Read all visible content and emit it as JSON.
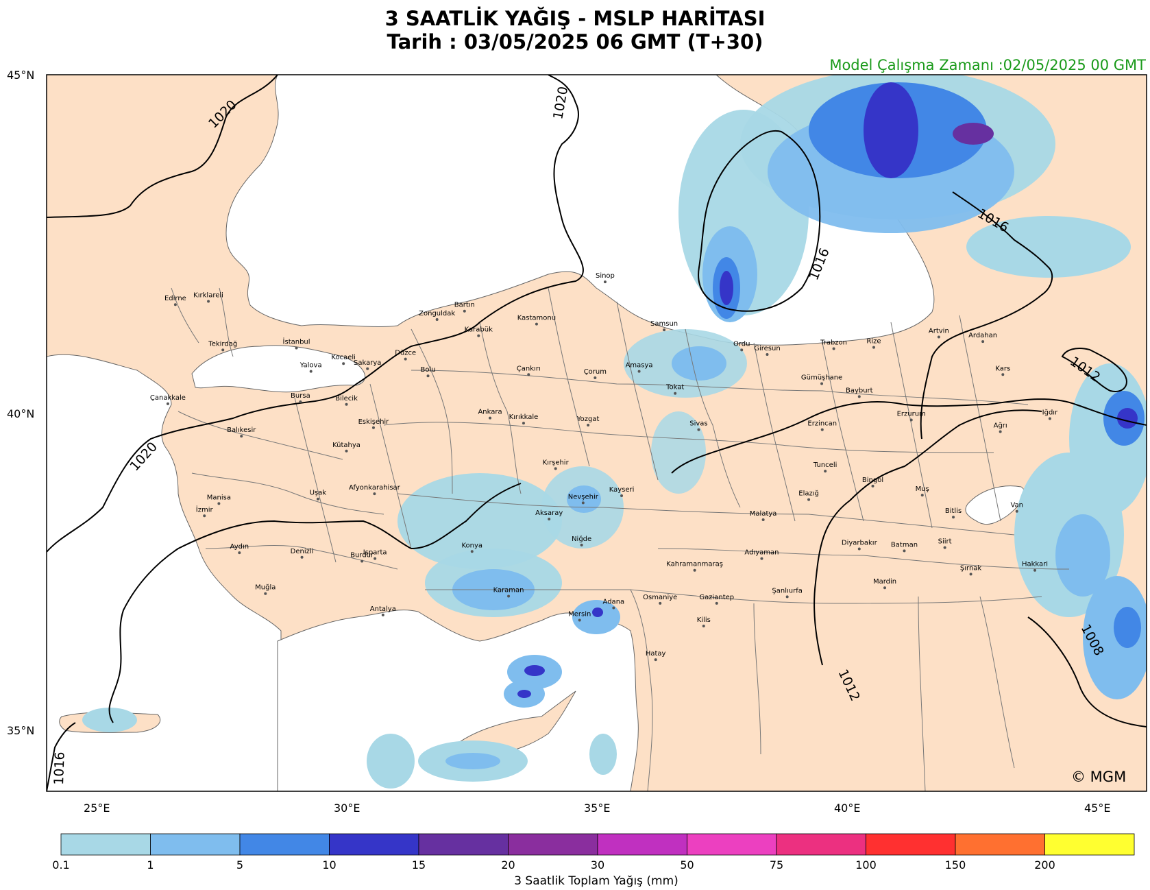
{
  "title_line1": "3 SAATLİK YAĞIŞ - MSLP HARİTASI",
  "title_line2": "Tarih : 03/05/2025  06 GMT (T+30)",
  "model_run": "Model Çalışma Zamanı :02/05/2025  00 GMT",
  "copyright": "© MGM",
  "lat_labels": [
    "45°N",
    "40°N",
    "35°N"
  ],
  "lon_labels": [
    "25°E",
    "30°E",
    "35°E",
    "40°E",
    "45°E"
  ],
  "isobars": [
    "1020",
    "1020",
    "1020",
    "1016",
    "1016",
    "1016",
    "1012",
    "1012",
    "1008"
  ],
  "colorbar": {
    "label": "3 Saatlik Toplam Yağış (mm)",
    "ticks": [
      "0.1",
      "1",
      "5",
      "10",
      "15",
      "20",
      "30",
      "50",
      "75",
      "100",
      "150",
      "200"
    ],
    "colors": [
      "#a8d8e6",
      "#7fbdee",
      "#4287e6",
      "#3535c8",
      "#6630a0",
      "#8a2e9e",
      "#c030c0",
      "#ec40c0",
      "#ec3080",
      "#ff3030",
      "#ff7030",
      "#ffff30"
    ]
  },
  "cities": [
    {
      "name": "Edirne",
      "lon": 26.56,
      "lat": 41.68
    },
    {
      "name": "Kırklareli",
      "lon": 27.22,
      "lat": 41.73
    },
    {
      "name": "Tekirdağ",
      "lon": 27.51,
      "lat": 40.98
    },
    {
      "name": "İstanbul",
      "lon": 28.98,
      "lat": 41.01
    },
    {
      "name": "Kocaeli",
      "lon": 29.92,
      "lat": 40.77
    },
    {
      "name": "Yalova",
      "lon": 29.27,
      "lat": 40.65
    },
    {
      "name": "Sakarya",
      "lon": 30.4,
      "lat": 40.69
    },
    {
      "name": "Düzce",
      "lon": 31.16,
      "lat": 40.84
    },
    {
      "name": "Zonguldak",
      "lon": 31.79,
      "lat": 41.45
    },
    {
      "name": "Bartın",
      "lon": 32.34,
      "lat": 41.58
    },
    {
      "name": "Karabük",
      "lon": 32.62,
      "lat": 41.2
    },
    {
      "name": "Kastamonu",
      "lon": 33.78,
      "lat": 41.38
    },
    {
      "name": "Sinop",
      "lon": 35.15,
      "lat": 42.03
    },
    {
      "name": "Samsun",
      "lon": 36.33,
      "lat": 41.29
    },
    {
      "name": "Ordu",
      "lon": 37.88,
      "lat": 40.98
    },
    {
      "name": "Giresun",
      "lon": 38.39,
      "lat": 40.91
    },
    {
      "name": "Trabzon",
      "lon": 39.72,
      "lat": 41.0
    },
    {
      "name": "Rize",
      "lon": 40.52,
      "lat": 41.02
    },
    {
      "name": "Artvin",
      "lon": 41.82,
      "lat": 41.18
    },
    {
      "name": "Ardahan",
      "lon": 42.7,
      "lat": 41.11
    },
    {
      "name": "Kars",
      "lon": 43.1,
      "lat": 40.6
    },
    {
      "name": "Iğdır",
      "lon": 44.04,
      "lat": 39.92
    },
    {
      "name": "Ağrı",
      "lon": 43.05,
      "lat": 39.72
    },
    {
      "name": "Erzurum",
      "lon": 41.27,
      "lat": 39.9
    },
    {
      "name": "Bayburt",
      "lon": 40.23,
      "lat": 40.26
    },
    {
      "name": "Gümüşhane",
      "lon": 39.48,
      "lat": 40.46
    },
    {
      "name": "Erzincan",
      "lon": 39.49,
      "lat": 39.75
    },
    {
      "name": "Tunceli",
      "lon": 39.55,
      "lat": 39.11
    },
    {
      "name": "Bingöl",
      "lon": 40.5,
      "lat": 38.88
    },
    {
      "name": "Muş",
      "lon": 41.49,
      "lat": 38.74
    },
    {
      "name": "Van",
      "lon": 43.38,
      "lat": 38.49
    },
    {
      "name": "Bitlis",
      "lon": 42.11,
      "lat": 38.4
    },
    {
      "name": "Elazığ",
      "lon": 39.22,
      "lat": 38.67
    },
    {
      "name": "Malatya",
      "lon": 38.31,
      "lat": 38.36
    },
    {
      "name": "Diyarbakır",
      "lon": 40.23,
      "lat": 37.91
    },
    {
      "name": "Batman",
      "lon": 41.13,
      "lat": 37.88
    },
    {
      "name": "Siirt",
      "lon": 41.94,
      "lat": 37.93
    },
    {
      "name": "Hakkari",
      "lon": 43.74,
      "lat": 37.58
    },
    {
      "name": "Şırnak",
      "lon": 42.46,
      "lat": 37.52
    },
    {
      "name": "Mardin",
      "lon": 40.74,
      "lat": 37.31
    },
    {
      "name": "Şanlıurfa",
      "lon": 38.79,
      "lat": 37.17
    },
    {
      "name": "Adıyaman",
      "lon": 38.28,
      "lat": 37.76
    },
    {
      "name": "Gaziantep",
      "lon": 37.38,
      "lat": 37.07
    },
    {
      "name": "Kilis",
      "lon": 37.12,
      "lat": 36.72
    },
    {
      "name": "Kahramanmaraş",
      "lon": 36.94,
      "lat": 37.58
    },
    {
      "name": "Osmaniye",
      "lon": 36.25,
      "lat": 37.07
    },
    {
      "name": "Hatay",
      "lon": 36.16,
      "lat": 36.2
    },
    {
      "name": "Adana",
      "lon": 35.32,
      "lat": 37.0
    },
    {
      "name": "Mersin",
      "lon": 34.64,
      "lat": 36.81
    },
    {
      "name": "Karaman",
      "lon": 33.22,
      "lat": 37.18
    },
    {
      "name": "Niğde",
      "lon": 34.68,
      "lat": 37.97
    },
    {
      "name": "Aksaray",
      "lon": 34.03,
      "lat": 38.37
    },
    {
      "name": "Nevşehir",
      "lon": 34.71,
      "lat": 38.62
    },
    {
      "name": "Kayseri",
      "lon": 35.48,
      "lat": 38.73
    },
    {
      "name": "Kırşehir",
      "lon": 34.16,
      "lat": 39.15
    },
    {
      "name": "Yozgat",
      "lon": 34.81,
      "lat": 39.82
    },
    {
      "name": "Sivas",
      "lon": 37.02,
      "lat": 39.75
    },
    {
      "name": "Tokat",
      "lon": 36.55,
      "lat": 40.31
    },
    {
      "name": "Amasya",
      "lon": 35.83,
      "lat": 40.65
    },
    {
      "name": "Çorum",
      "lon": 34.95,
      "lat": 40.55
    },
    {
      "name": "Çankırı",
      "lon": 33.62,
      "lat": 40.6
    },
    {
      "name": "Kırıkkale",
      "lon": 33.52,
      "lat": 39.85
    },
    {
      "name": "Ankara",
      "lon": 32.85,
      "lat": 39.93
    },
    {
      "name": "Bolu",
      "lon": 31.61,
      "lat": 40.58
    },
    {
      "name": "Bilecik",
      "lon": 29.98,
      "lat": 40.14
    },
    {
      "name": "Eskişehir",
      "lon": 30.52,
      "lat": 39.78
    },
    {
      "name": "Kütahya",
      "lon": 29.98,
      "lat": 39.42
    },
    {
      "name": "Afyonkarahisar",
      "lon": 30.54,
      "lat": 38.76
    },
    {
      "name": "Uşak",
      "lon": 29.41,
      "lat": 38.68
    },
    {
      "name": "Konya",
      "lon": 32.49,
      "lat": 37.87
    },
    {
      "name": "Isparta",
      "lon": 30.55,
      "lat": 37.76
    },
    {
      "name": "Burdur",
      "lon": 30.29,
      "lat": 37.72
    },
    {
      "name": "Antalya",
      "lon": 30.71,
      "lat": 36.89
    },
    {
      "name": "Denizli",
      "lon": 29.09,
      "lat": 37.78
    },
    {
      "name": "Muğla",
      "lon": 28.36,
      "lat": 37.22
    },
    {
      "name": "Aydın",
      "lon": 27.84,
      "lat": 37.85
    },
    {
      "name": "İzmir",
      "lon": 27.14,
      "lat": 38.42
    },
    {
      "name": "Manisa",
      "lon": 27.43,
      "lat": 38.61
    },
    {
      "name": "Balıkesir",
      "lon": 27.88,
      "lat": 39.65
    },
    {
      "name": "Bursa",
      "lon": 29.06,
      "lat": 40.18
    },
    {
      "name": "Çanakkale",
      "lon": 26.41,
      "lat": 40.15
    }
  ]
}
